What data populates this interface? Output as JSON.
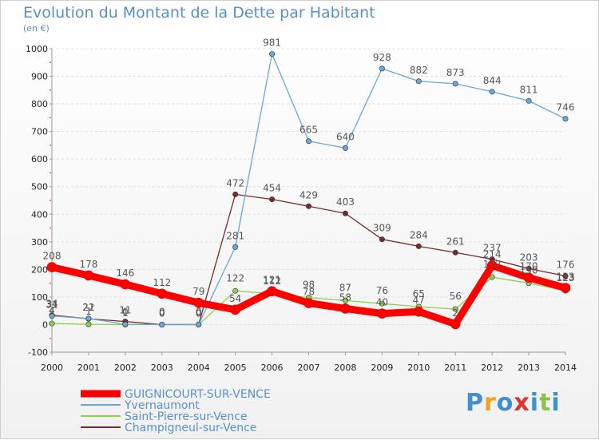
{
  "chart_data": {
    "type": "line",
    "title": "Evolution du Montant de la Dette par Habitant",
    "ylabel": "(en €)",
    "xlabel": "",
    "x": [
      2000,
      2001,
      2002,
      2003,
      2004,
      2005,
      2006,
      2007,
      2008,
      2009,
      2010,
      2011,
      2012,
      2013,
      2014
    ],
    "ylim": [
      -100,
      1000
    ],
    "yticks": [
      -100,
      0,
      100,
      200,
      300,
      400,
      500,
      600,
      700,
      800,
      900,
      1000
    ],
    "grid": "horizontal",
    "legend_position": "bottom-left",
    "series": [
      {
        "name": "GUIGNICOURT-SUR-VENCE",
        "color": "#ff0000",
        "values": [
          208,
          178,
          146,
          112,
          79,
          54,
          121,
          78,
          58,
          40,
          47,
          2,
          214,
          170,
          133
        ]
      },
      {
        "name": "Yvernaumont",
        "color": "#6aa6d8",
        "values": [
          31,
          22,
          1,
          0,
          0,
          281,
          981,
          665,
          640,
          928,
          882,
          873,
          844,
          811,
          746
        ]
      },
      {
        "name": "Saint-Pierre-sur-Vence",
        "color": "#8ed04e",
        "values": [
          4,
          1,
          0,
          0,
          0,
          122,
          112,
          98,
          87,
          76,
          65,
          56,
          172,
          150,
          123
        ]
      },
      {
        "name": "Champigneul-sur-Vence",
        "color": "#7a2a2a",
        "values": [
          34,
          21,
          11,
          0,
          0,
          472,
          454,
          429,
          403,
          309,
          284,
          261,
          237,
          203,
          176
        ]
      }
    ]
  },
  "logo": {
    "letters": [
      "P",
      "r",
      "o",
      "x",
      "i",
      "t",
      "i"
    ],
    "colors": [
      "#3f8fd2",
      "#f0a31e",
      "#3f8fd2",
      "#d33",
      "#3f8fd2",
      "#8bc34a",
      "#3f8fd2"
    ]
  }
}
